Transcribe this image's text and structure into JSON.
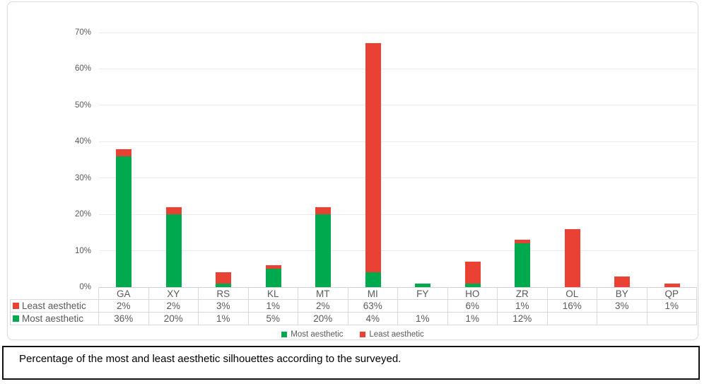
{
  "caption": {
    "text": "Percentage of the most and least aesthetic silhouettes according to the surveyed."
  },
  "colors": {
    "most": "#00A84E",
    "least": "#E94234",
    "grid": "#EBEBEB",
    "axis_text": "#595959",
    "table_border": "#D9D9D9"
  },
  "chart_data": {
    "type": "bar",
    "stacked": true,
    "title": "",
    "xlabel": "",
    "ylabel": "",
    "categories": [
      "GA",
      "XY",
      "RS",
      "KL",
      "MT",
      "MI",
      "FY",
      "HO",
      "ZR",
      "OL",
      "BY",
      "QP"
    ],
    "series": [
      {
        "name": "Most aesthetic",
        "color_key": "most",
        "values": [
          36,
          20,
          1,
          5,
          20,
          4,
          1,
          1,
          12,
          0,
          0,
          0
        ]
      },
      {
        "name": "Least aesthetic",
        "color_key": "least",
        "values": [
          2,
          2,
          3,
          1,
          2,
          63,
          0,
          6,
          1,
          16,
          3,
          1
        ]
      }
    ],
    "ylim": [
      0,
      70
    ],
    "ytick_step": 10,
    "ytick_labels": [
      "0%",
      "10%",
      "20%",
      "30%",
      "40%",
      "50%",
      "60%",
      "70%"
    ],
    "grid": true,
    "legend_position": "bottom",
    "legend": [
      {
        "label": "Most aesthetic",
        "color_key": "most"
      },
      {
        "label": "Least aesthetic",
        "color_key": "least"
      }
    ]
  },
  "data_table": {
    "rows": [
      {
        "label": "Least aesthetic",
        "color_key": "least",
        "cells": [
          "2%",
          "2%",
          "3%",
          "1%",
          "2%",
          "63%",
          "",
          "6%",
          "1%",
          "16%",
          "3%",
          "1%"
        ]
      },
      {
        "label": "Most aesthetic",
        "color_key": "most",
        "cells": [
          "36%",
          "20%",
          "1%",
          "5%",
          "20%",
          "4%",
          "1%",
          "1%",
          "12%",
          "",
          "",
          ""
        ]
      }
    ]
  }
}
